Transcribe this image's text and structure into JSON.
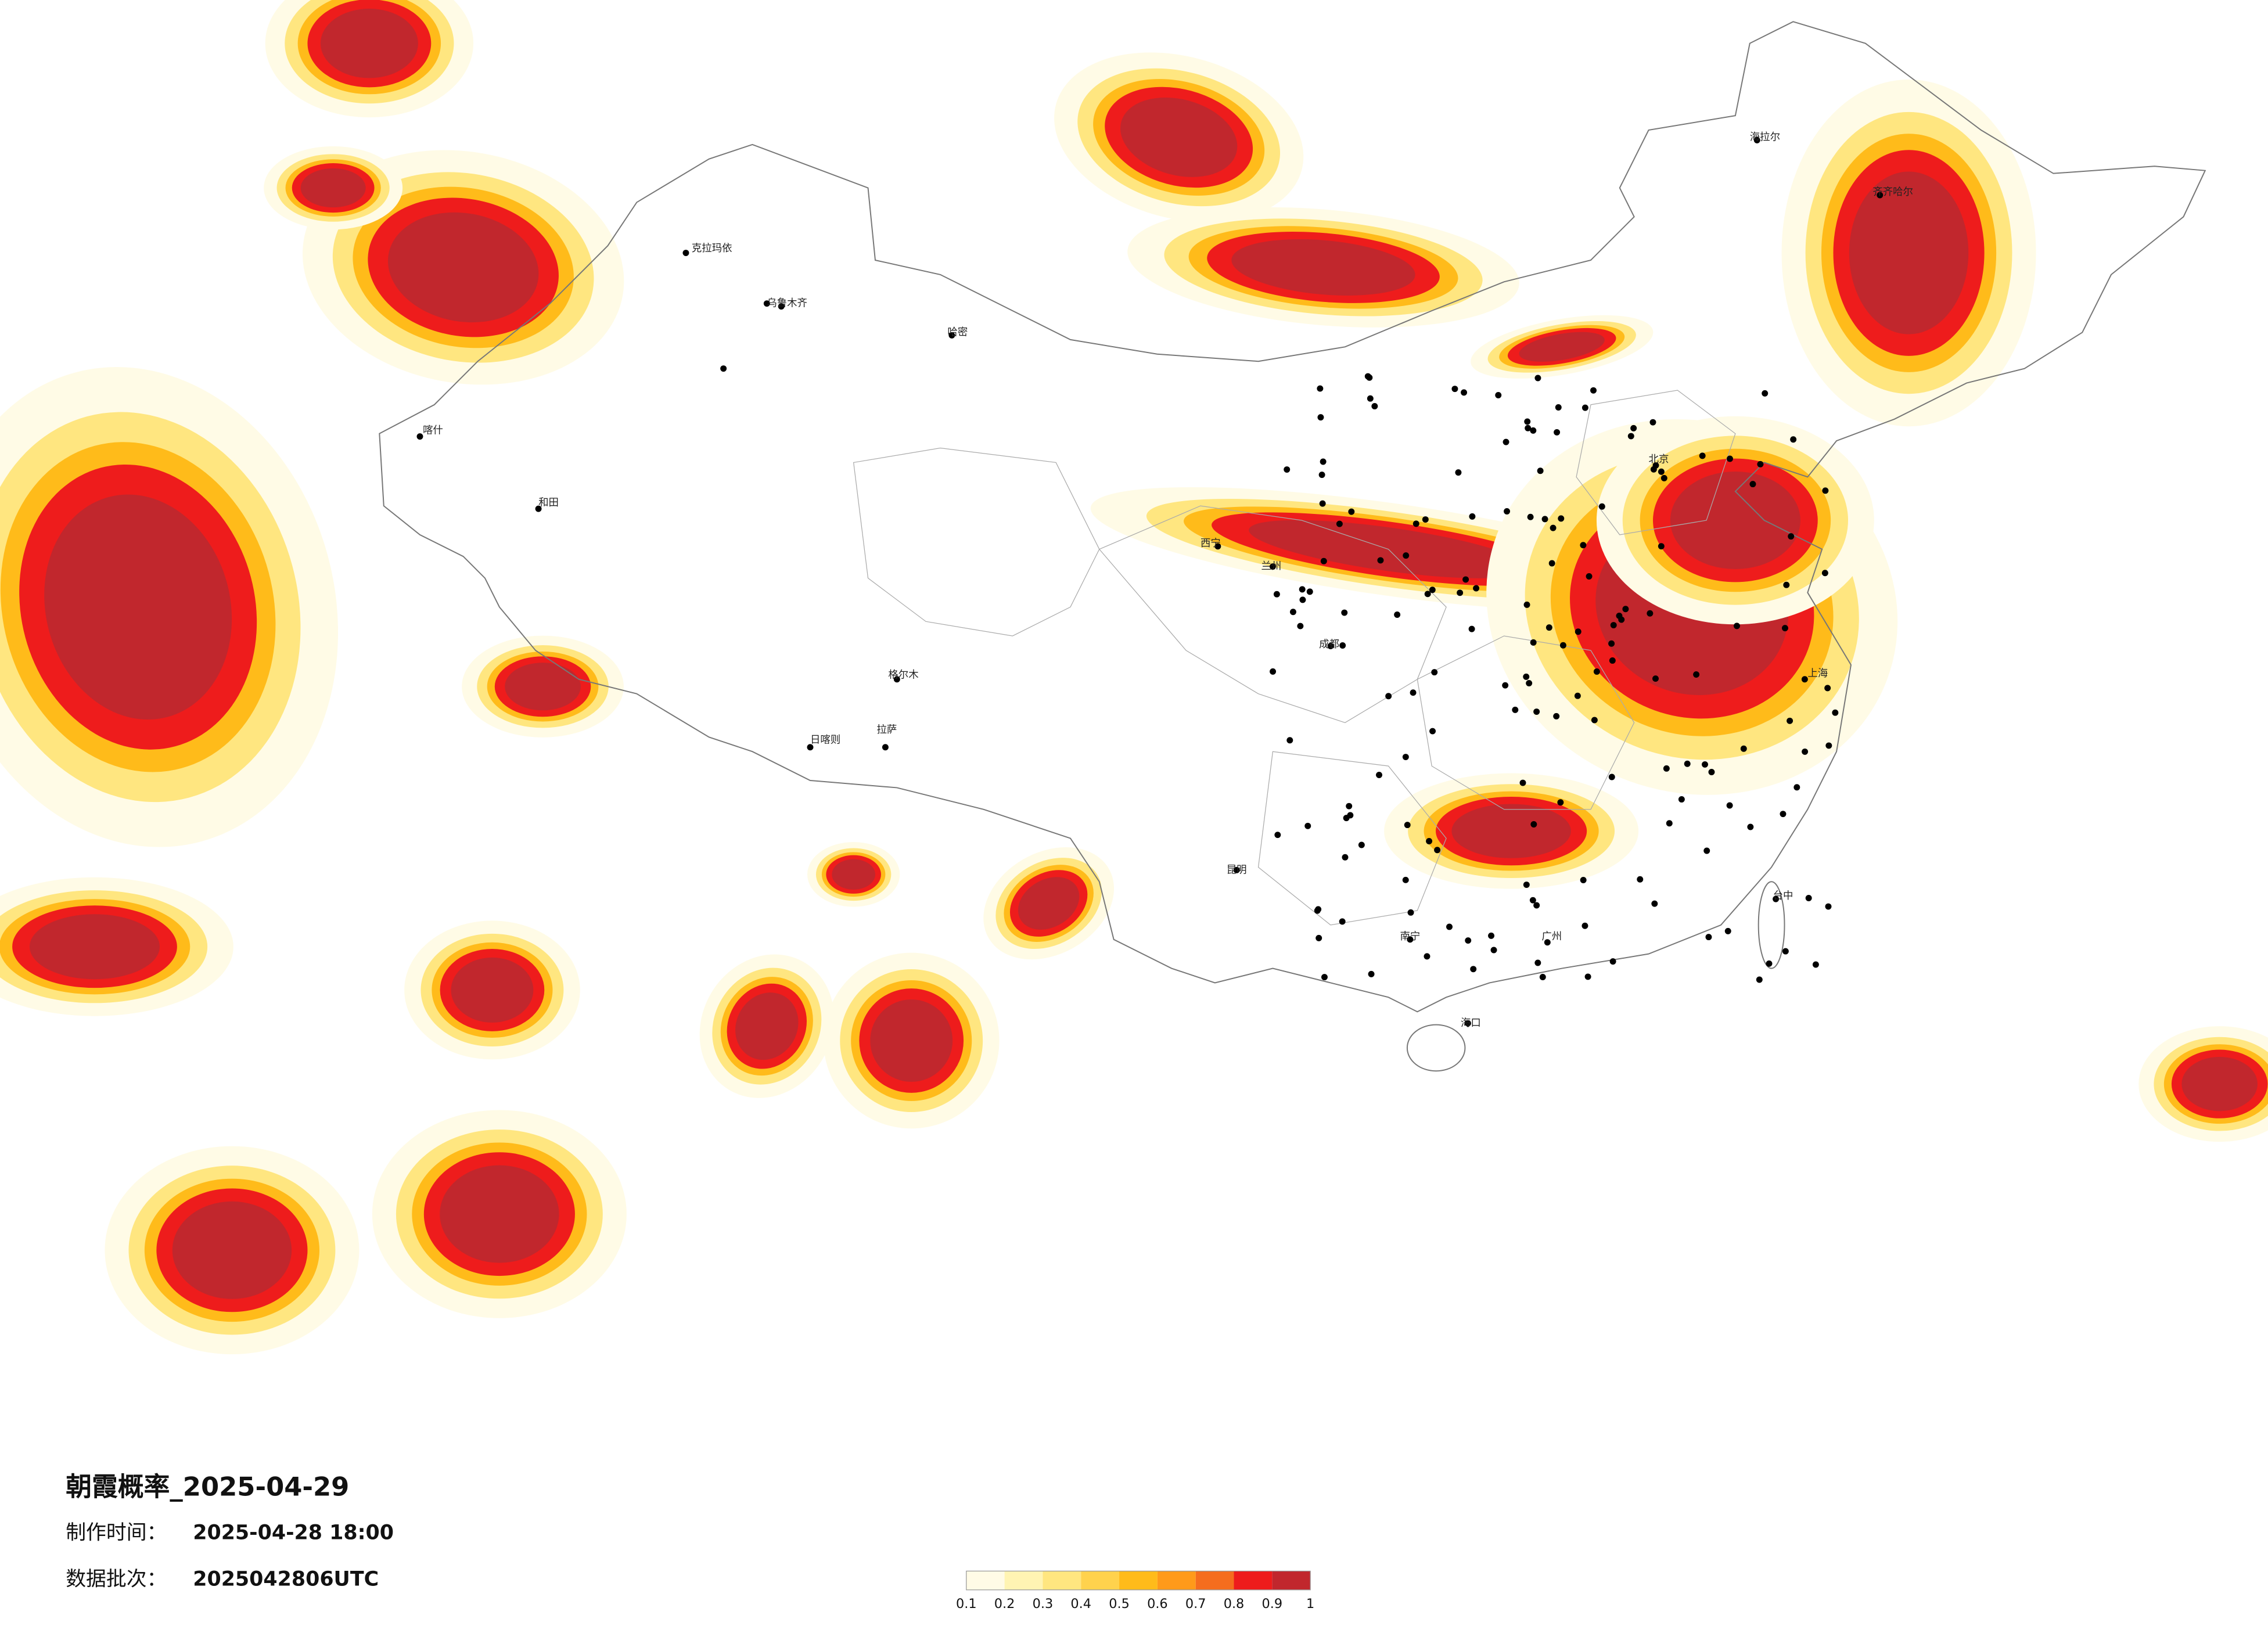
{
  "title": "朝霞概率_2025-04-29",
  "production_label": "制作时间：",
  "production_time": "2025-04-28 18:00",
  "batch_label": "数据批次：",
  "batch": "2025042806UTC",
  "colorbar": {
    "ticks": [
      0.1,
      0.2,
      0.3,
      0.4,
      0.5,
      0.6,
      0.7,
      0.8,
      0.9,
      1
    ],
    "colors": [
      "#fffbe6",
      "#fff4b3",
      "#ffe680",
      "#ffd24d",
      "#ffbb1a",
      "#ff9a1a",
      "#f56d1e",
      "#ee1c1c",
      "#c1272d"
    ]
  },
  "cities": [
    "克拉玛依",
    "乌鲁木齐",
    "喀什",
    "和田",
    "哈密",
    "格尔木",
    "拉萨",
    "日喀则",
    "西宁",
    "兰州",
    "成都",
    "昆明",
    "南宁",
    "海口",
    "广州",
    "上海",
    "北京",
    "齐齐哈尔",
    "海拉尔",
    "台中"
  ]
}
